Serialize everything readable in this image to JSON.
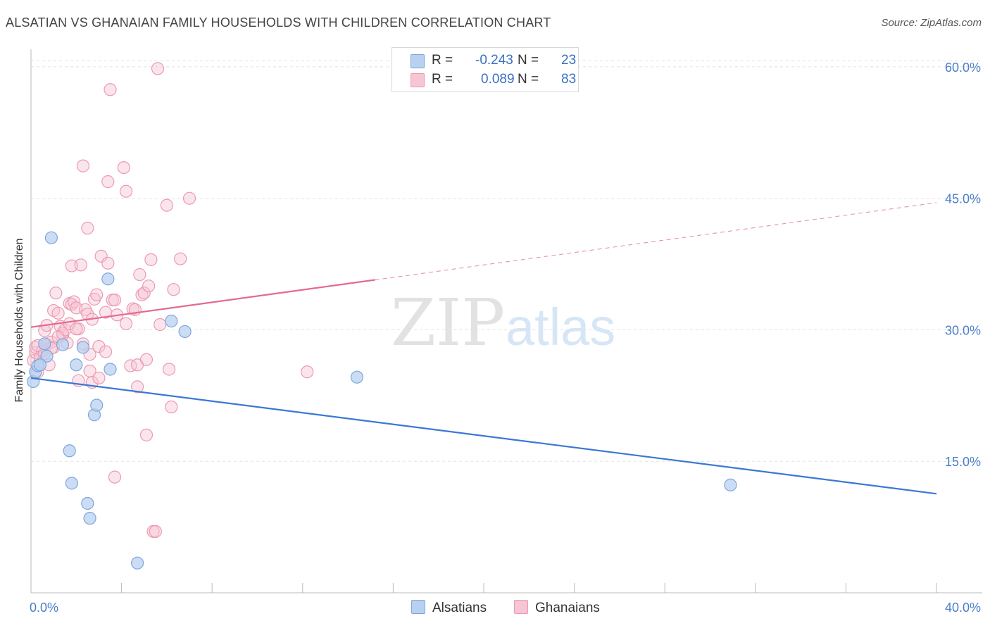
{
  "header": {
    "title": "ALSATIAN VS GHANAIAN FAMILY HOUSEHOLDS WITH CHILDREN CORRELATION CHART",
    "source": "Source: ZipAtlas.com"
  },
  "watermark": {
    "zip": "ZIP",
    "atlas": "atlas"
  },
  "legend": {
    "rows": [
      {
        "r_label": "R =",
        "r_value": "-0.243",
        "n_label": "N =",
        "n_value": "23"
      },
      {
        "r_label": "R =",
        "r_value": "0.089",
        "n_label": "N =",
        "n_value": "83"
      }
    ],
    "bottom": [
      {
        "label": "Alsatians"
      },
      {
        "label": "Ghanaians"
      }
    ]
  },
  "colors": {
    "alsatian_fill": "#b8d1f0",
    "alsatian_stroke": "#7ea6dd",
    "alsatian_line": "#3a78d4",
    "ghanaian_fill": "#f7c5d4",
    "ghanaian_stroke": "#ec9ab3",
    "ghanaian_line": "#e26a92",
    "axis_text": "#4a7fc8",
    "grid": "#e2e2e2"
  },
  "chart_data": {
    "type": "scatter",
    "title": "ALSATIAN VS GHANAIAN FAMILY HOUSEHOLDS WITH CHILDREN CORRELATION CHART",
    "xlabel": "",
    "ylabel": "Family Households with Children",
    "xlim": [
      0,
      40
    ],
    "ylim": [
      0,
      62
    ],
    "x_tick_labels": [
      "0.0%",
      "40.0%"
    ],
    "y_ticks": [
      15,
      30,
      45,
      60
    ],
    "y_tick_labels": [
      "15.0%",
      "30.0%",
      "45.0%",
      "60.0%"
    ],
    "grid": true,
    "series": [
      {
        "name": "Alsatians",
        "r": -0.243,
        "n": 23,
        "trend": {
          "x_start": 0,
          "y_start": 24.5,
          "x_end": 40,
          "y_end": 11.3,
          "dashed_from": null
        },
        "points": [
          [
            0.1,
            24.1
          ],
          [
            0.2,
            25.2
          ],
          [
            0.3,
            25.9
          ],
          [
            0.6,
            28.4
          ],
          [
            0.7,
            27.0
          ],
          [
            0.9,
            40.5
          ],
          [
            1.4,
            28.3
          ],
          [
            1.8,
            12.5
          ],
          [
            1.7,
            16.2
          ],
          [
            2.0,
            26.0
          ],
          [
            2.5,
            10.2
          ],
          [
            2.3,
            28.0
          ],
          [
            2.6,
            8.5
          ],
          [
            2.8,
            20.3
          ],
          [
            2.9,
            21.4
          ],
          [
            3.4,
            35.8
          ],
          [
            3.5,
            25.5
          ],
          [
            4.7,
            3.4
          ],
          [
            6.2,
            31.0
          ],
          [
            6.8,
            29.8
          ],
          [
            14.4,
            24.6
          ],
          [
            30.9,
            12.3
          ],
          [
            0.4,
            26.0
          ]
        ]
      },
      {
        "name": "Ghanaians",
        "r": 0.089,
        "n": 83,
        "trend": {
          "x_start": 0,
          "y_start": 30.3,
          "x_end": 40,
          "y_end": 44.5,
          "dashed_from": 15.2
        },
        "points": [
          [
            0.1,
            26.5
          ],
          [
            0.2,
            27.4
          ],
          [
            0.2,
            28.0
          ],
          [
            0.3,
            25.2
          ],
          [
            0.4,
            26.8
          ],
          [
            0.5,
            27.6
          ],
          [
            0.6,
            29.9
          ],
          [
            0.6,
            27.3
          ],
          [
            0.7,
            30.5
          ],
          [
            0.7,
            28.3
          ],
          [
            0.8,
            26.0
          ],
          [
            0.9,
            28.6
          ],
          [
            1.0,
            28.0
          ],
          [
            1.0,
            32.2
          ],
          [
            1.1,
            34.2
          ],
          [
            1.2,
            31.9
          ],
          [
            1.3,
            30.4
          ],
          [
            1.4,
            29.4
          ],
          [
            1.4,
            29.6
          ],
          [
            1.5,
            30.0
          ],
          [
            1.6,
            28.5
          ],
          [
            1.7,
            30.7
          ],
          [
            1.7,
            33.0
          ],
          [
            1.8,
            32.9
          ],
          [
            1.8,
            37.3
          ],
          [
            1.9,
            33.2
          ],
          [
            2.0,
            32.5
          ],
          [
            2.1,
            24.2
          ],
          [
            2.1,
            30.1
          ],
          [
            2.2,
            37.4
          ],
          [
            2.3,
            28.4
          ],
          [
            2.3,
            48.7
          ],
          [
            2.4,
            32.3
          ],
          [
            2.5,
            31.8
          ],
          [
            2.5,
            41.6
          ],
          [
            2.6,
            27.2
          ],
          [
            2.6,
            25.3
          ],
          [
            2.7,
            24.0
          ],
          [
            2.7,
            31.2
          ],
          [
            2.8,
            33.5
          ],
          [
            2.9,
            34.0
          ],
          [
            3.0,
            24.5
          ],
          [
            3.0,
            28.1
          ],
          [
            3.1,
            38.4
          ],
          [
            3.3,
            32.0
          ],
          [
            3.3,
            27.5
          ],
          [
            3.4,
            46.9
          ],
          [
            3.4,
            37.6
          ],
          [
            3.5,
            57.4
          ],
          [
            3.6,
            33.4
          ],
          [
            3.7,
            33.4
          ],
          [
            3.7,
            13.2
          ],
          [
            3.8,
            31.7
          ],
          [
            4.1,
            48.5
          ],
          [
            4.2,
            30.7
          ],
          [
            4.2,
            45.8
          ],
          [
            4.4,
            25.9
          ],
          [
            4.5,
            32.4
          ],
          [
            4.6,
            32.3
          ],
          [
            4.7,
            26.0
          ],
          [
            4.7,
            23.5
          ],
          [
            4.8,
            36.3
          ],
          [
            4.9,
            34.0
          ],
          [
            5.0,
            34.2
          ],
          [
            5.1,
            26.6
          ],
          [
            5.1,
            18.0
          ],
          [
            5.2,
            35.0
          ],
          [
            5.3,
            38.0
          ],
          [
            5.4,
            7.0
          ],
          [
            5.5,
            7.0
          ],
          [
            5.6,
            59.8
          ],
          [
            5.7,
            30.6
          ],
          [
            6.0,
            44.2
          ],
          [
            6.1,
            25.5
          ],
          [
            6.2,
            21.2
          ],
          [
            6.3,
            34.6
          ],
          [
            6.6,
            38.1
          ],
          [
            7.0,
            45.0
          ],
          [
            12.2,
            25.2
          ],
          [
            0.3,
            28.2
          ],
          [
            0.9,
            27.9
          ],
          [
            1.2,
            29.2
          ],
          [
            2.0,
            30.1
          ]
        ]
      }
    ]
  }
}
